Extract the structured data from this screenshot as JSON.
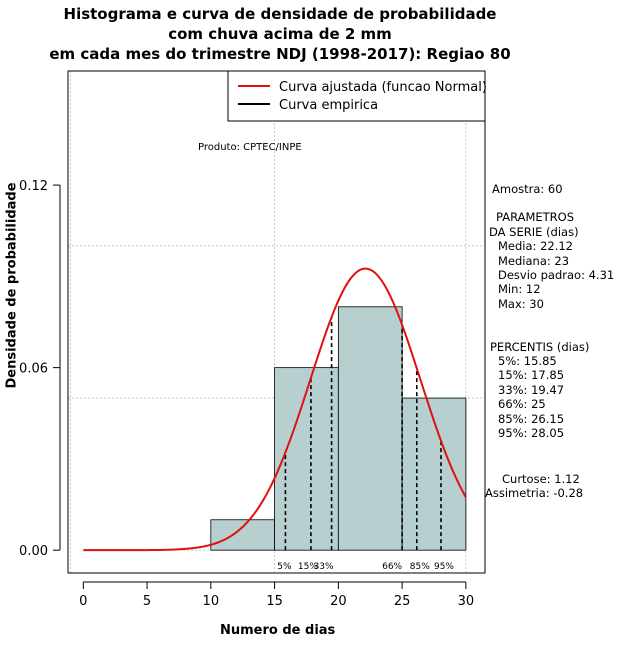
{
  "title": {
    "line1": "Histograma e curva de densidade de probabilidade",
    "line2": "com chuva acima de 2 mm",
    "line3": "em cada mes do trimestre NDJ (1998-2017): Regiao 80"
  },
  "credit": "Produto: CPTEC/INPE",
  "legend": {
    "fitted": "Curva ajustada (funcao Normal)",
    "empirical": "Curva empirica"
  },
  "stats": {
    "sample": "Amostra: 60",
    "params_h1": "PARAMETROS",
    "params_h2": "DA SERIE (dias)",
    "media": "Media: 22.12",
    "mediana": "Mediana: 23",
    "desvio": "Desvio padrao: 4.31",
    "min": "Min: 12",
    "max": "Max: 30",
    "perc_h": "PERCENTIS (dias)",
    "p5": "5%: 15.85",
    "p15": "15%: 17.85",
    "p33": "33%: 19.47",
    "p66": "66%: 25",
    "p85": "85%: 26.15",
    "p95": "95%: 28.05",
    "curtose": "Curtose: 1.12",
    "assimetria": "Assimetria: -0.28"
  },
  "colors": {
    "bar_fill": "#b7cfcf",
    "fit_curve": "#e01010",
    "empirical": "#000000",
    "grid": "#bbbbbb"
  },
  "chart_data": {
    "type": "bar",
    "xlabel": "Numero de dias",
    "ylabel": "Densidade de probabilidade",
    "xlim": [
      -1.2,
      31.5
    ],
    "ylim": [
      -0.0075,
      0.1575
    ],
    "xticks": [
      0,
      5,
      10,
      15,
      20,
      25,
      30
    ],
    "yticks": [
      0.0,
      0.06,
      0.12
    ],
    "ytick_labels": [
      "0.00",
      "0.06",
      "0.12"
    ],
    "grid": true,
    "legend_position": "top-right",
    "bins": [
      {
        "x0": 10,
        "x1": 15,
        "density": 0.01
      },
      {
        "x0": 15,
        "x1": 20,
        "density": 0.06
      },
      {
        "x0": 20,
        "x1": 25,
        "density": 0.08
      },
      {
        "x0": 25,
        "x1": 30,
        "density": 0.05
      }
    ],
    "fitted_normal": {
      "mean": 22.12,
      "sd": 4.31,
      "x_range": [
        0,
        30
      ]
    },
    "percentile_lines": [
      {
        "label": "5%",
        "x": 15.85
      },
      {
        "label": "15%",
        "x": 17.85
      },
      {
        "label": "33%",
        "x": 19.47
      },
      {
        "label": "66%",
        "x": 25
      },
      {
        "label": "85%",
        "x": 26.15
      },
      {
        "label": "95%",
        "x": 28.05
      }
    ]
  }
}
